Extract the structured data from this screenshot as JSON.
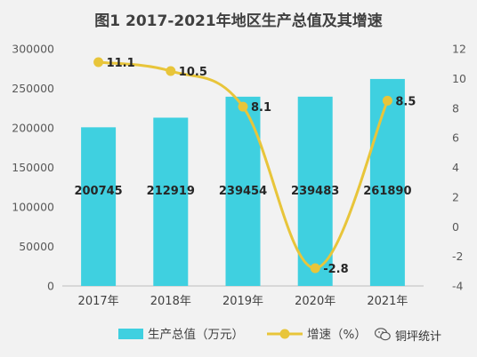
{
  "title": "图1  2017-2021年地区生产总值及其增速",
  "chart_data": {
    "type": "bar",
    "categories": [
      "2017年",
      "2018年",
      "2019年",
      "2020年",
      "2021年"
    ],
    "series": [
      {
        "name": "生产总值（万元）",
        "type": "bar",
        "axis": "left",
        "color": "#3fd0e0",
        "values": [
          200745,
          212919,
          239454,
          239483,
          261890
        ],
        "labels": [
          "200745",
          "212919",
          "239454",
          "239483",
          "261890"
        ]
      },
      {
        "name": "增速（%）",
        "type": "line",
        "axis": "right",
        "color": "#e8c53a",
        "values": [
          11.1,
          10.5,
          8.1,
          -2.8,
          8.5
        ],
        "labels": [
          "11.1",
          "10.5",
          "8.1",
          "-2.8",
          "8.5"
        ]
      }
    ],
    "y_left": {
      "min": 0,
      "max": 300000,
      "ticks": [
        "0",
        "50000",
        "100000",
        "150000",
        "200000",
        "250000",
        "300000"
      ]
    },
    "y_right": {
      "min": -4,
      "max": 12,
      "ticks": [
        "-4",
        "-2",
        "0",
        "2",
        "4",
        "6",
        "8",
        "10",
        "12"
      ]
    },
    "grid": false,
    "legend_position": "bottom"
  },
  "watermark": "铜坪统计"
}
